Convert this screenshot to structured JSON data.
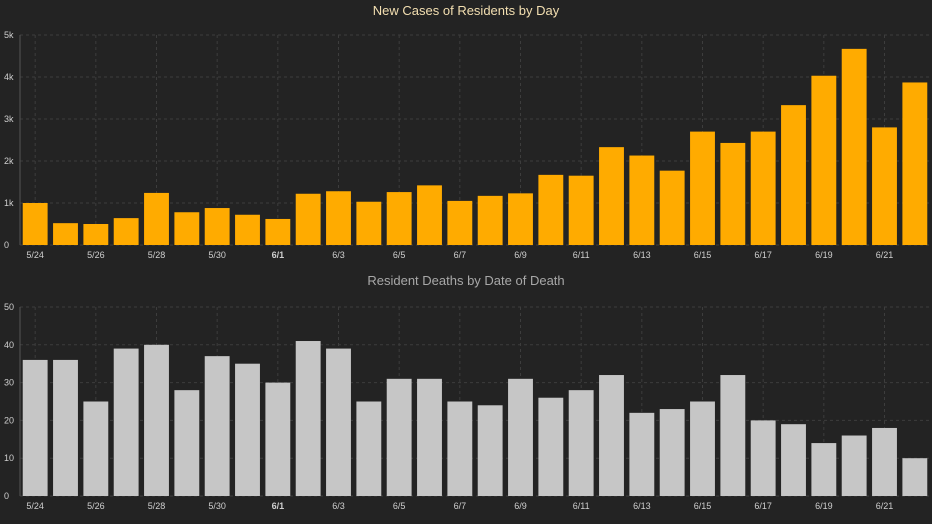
{
  "colors": {
    "background": "#232323",
    "cases_bar": "#ffab00",
    "deaths_bar": "#c6c6c6",
    "grid": "#3d3d3d",
    "axis_text": "#cfcfcf"
  },
  "chart_data": [
    {
      "type": "bar",
      "title": "New Cases of Residents by Day",
      "categories": [
        "5/24",
        "5/25",
        "5/26",
        "5/27",
        "5/28",
        "5/29",
        "5/30",
        "5/31",
        "6/1",
        "6/2",
        "6/3",
        "6/4",
        "6/5",
        "6/6",
        "6/7",
        "6/8",
        "6/9",
        "6/10",
        "6/11",
        "6/12",
        "6/13",
        "6/14",
        "6/15",
        "6/16",
        "6/17",
        "6/18",
        "6/19",
        "6/20",
        "6/21",
        "6/22"
      ],
      "x_tick_labels": [
        "5/24",
        "5/26",
        "5/28",
        "5/30",
        "6/1",
        "6/3",
        "6/5",
        "6/7",
        "6/9",
        "6/11",
        "6/13",
        "6/15",
        "6/17",
        "6/19",
        "6/21"
      ],
      "y_tick_labels": [
        "0",
        "1k",
        "2k",
        "3k",
        "4k",
        "5k"
      ],
      "values": [
        1000,
        520,
        500,
        640,
        1240,
        780,
        880,
        720,
        620,
        1220,
        1280,
        1030,
        1260,
        1420,
        1050,
        1170,
        1230,
        1670,
        1650,
        2330,
        2130,
        1770,
        2700,
        2430,
        2700,
        3330,
        4030,
        4670,
        2800,
        3870
      ],
      "ylim": [
        0,
        5000
      ],
      "grid": true,
      "legend": "none"
    },
    {
      "type": "bar",
      "title": "Resident Deaths by Date of Death",
      "categories": [
        "5/24",
        "5/25",
        "5/26",
        "5/27",
        "5/28",
        "5/29",
        "5/30",
        "5/31",
        "6/1",
        "6/2",
        "6/3",
        "6/4",
        "6/5",
        "6/6",
        "6/7",
        "6/8",
        "6/9",
        "6/10",
        "6/11",
        "6/12",
        "6/13",
        "6/14",
        "6/15",
        "6/16",
        "6/17",
        "6/18",
        "6/19",
        "6/20",
        "6/21",
        "6/22"
      ],
      "x_tick_labels": [
        "5/24",
        "5/26",
        "5/28",
        "5/30",
        "6/1",
        "6/3",
        "6/5",
        "6/7",
        "6/9",
        "6/11",
        "6/13",
        "6/15",
        "6/17",
        "6/19",
        "6/21"
      ],
      "y_tick_labels": [
        "0",
        "10",
        "20",
        "30",
        "40",
        "50"
      ],
      "values": [
        36,
        36,
        25,
        39,
        40,
        28,
        37,
        35,
        30,
        41,
        39,
        25,
        31,
        31,
        25,
        24,
        31,
        26,
        28,
        32,
        22,
        23,
        25,
        32,
        20,
        19,
        14,
        16,
        18,
        10
      ],
      "ylim": [
        0,
        50
      ],
      "grid": true,
      "legend": "none"
    }
  ]
}
